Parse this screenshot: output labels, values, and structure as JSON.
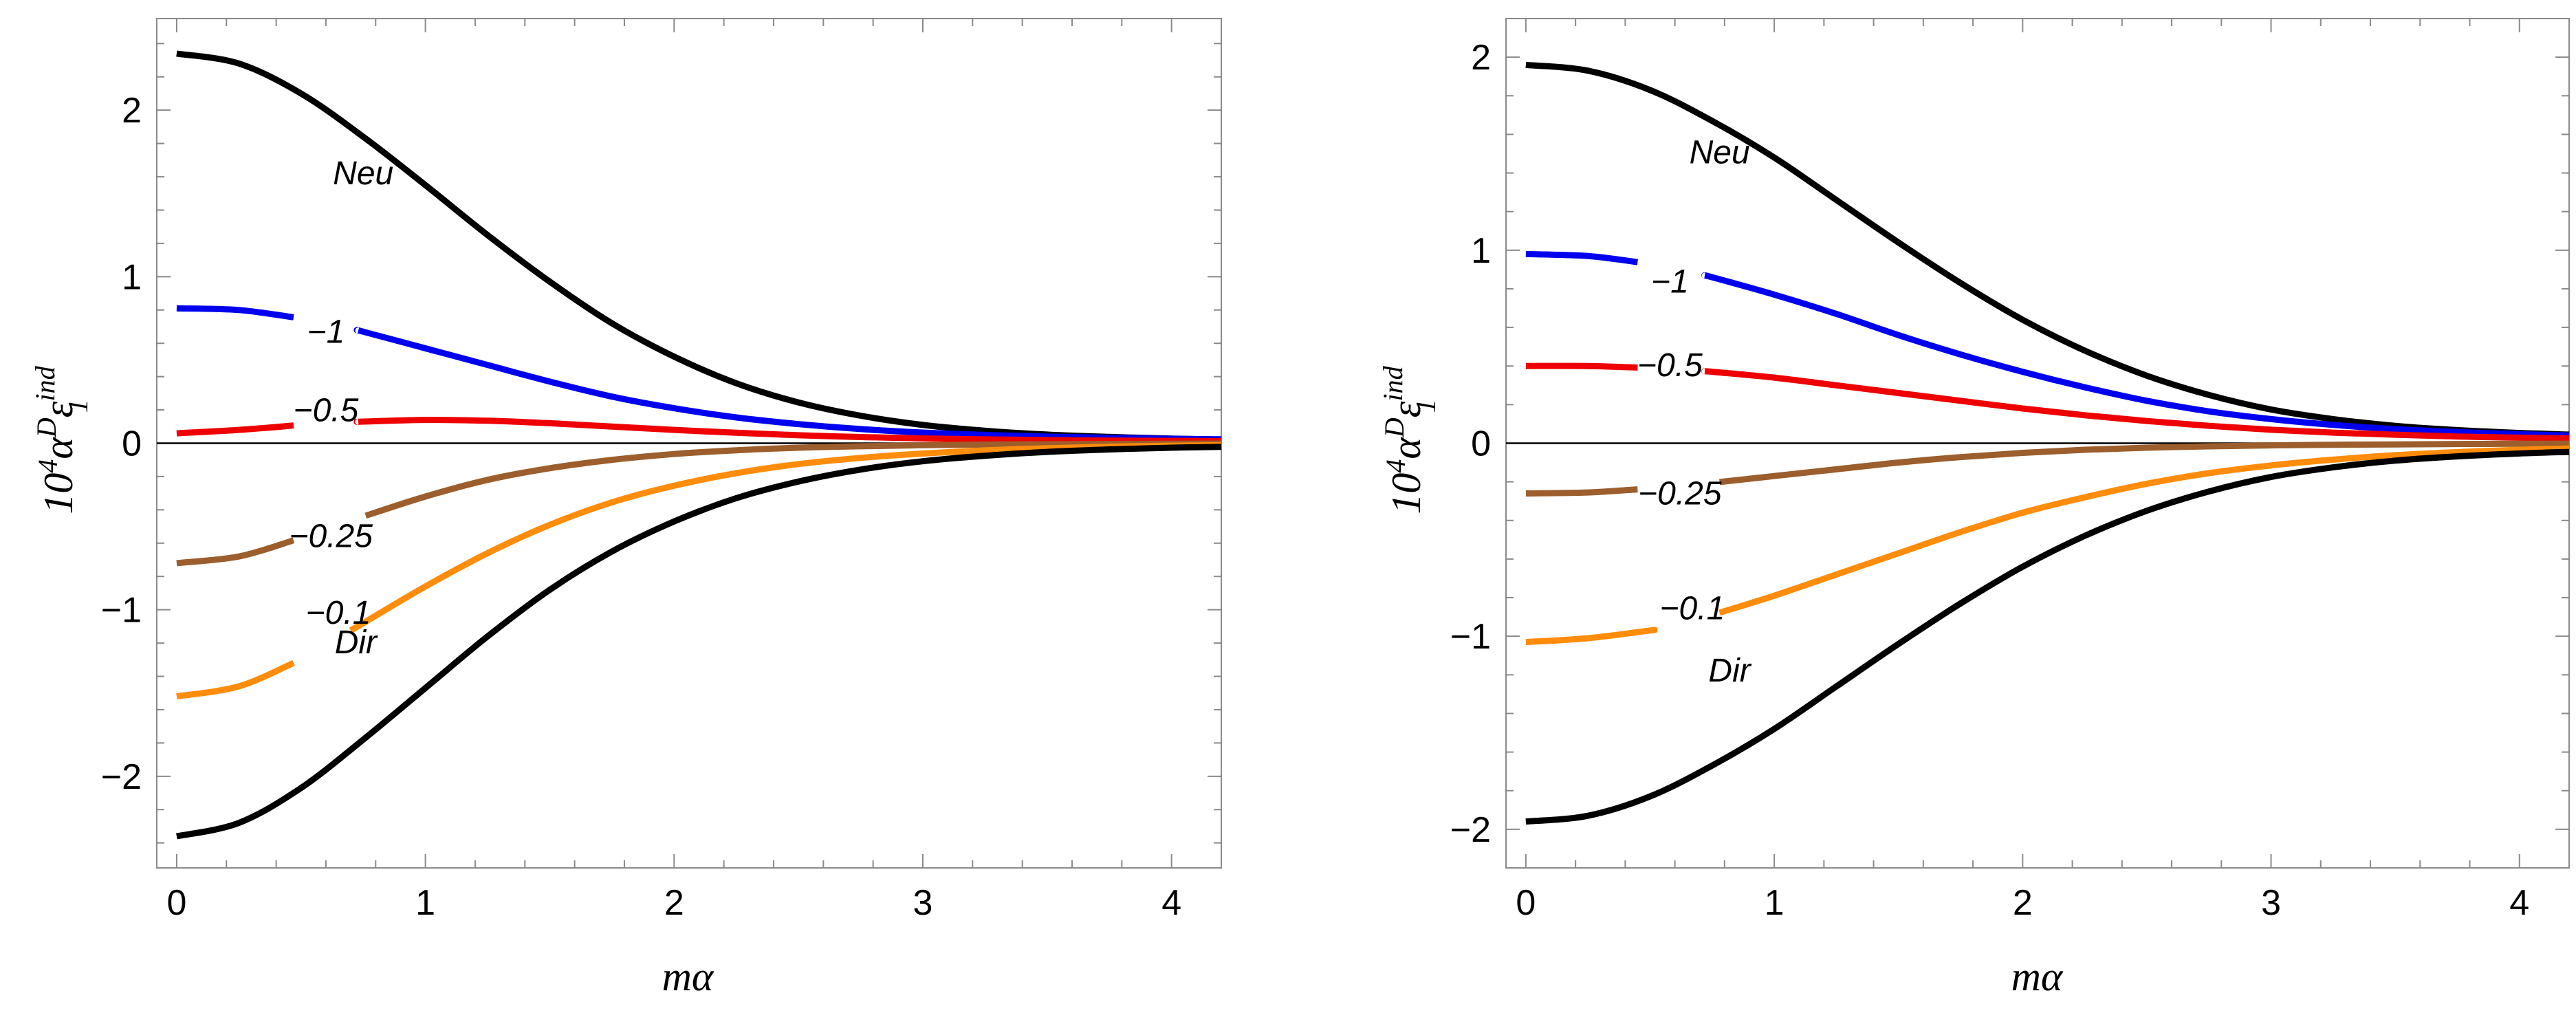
{
  "chart_data": [
    {
      "type": "line",
      "panel": "left",
      "xlabel": "mα",
      "ylabel": {
        "base": "10",
        "exp": "4",
        "a": "α",
        "sup": "D",
        "eps": "ε",
        "sub": "1",
        "ind": "ind"
      },
      "xlim": [
        -0.08,
        4.2
      ],
      "ylim": [
        -2.55,
        2.55
      ],
      "xticks": [
        {
          "v": 0,
          "label": "0"
        },
        {
          "v": 1,
          "label": "1"
        },
        {
          "v": 2,
          "label": "2"
        },
        {
          "v": 3,
          "label": "3"
        },
        {
          "v": 4,
          "label": "4"
        }
      ],
      "yticks": [
        {
          "v": -2,
          "label": "−2"
        },
        {
          "v": -1,
          "label": "−1"
        },
        {
          "v": 0,
          "label": "0"
        },
        {
          "v": 1,
          "label": "1"
        },
        {
          "v": 2,
          "label": "2"
        }
      ],
      "zero_line": true,
      "series": [
        {
          "name": "Neu",
          "color": "#000000",
          "labelX": 0.75,
          "labelDy": -0.22,
          "points": [
            [
              0,
              2.34
            ],
            [
              0.25,
              2.28
            ],
            [
              0.5,
              2.1
            ],
            [
              0.75,
              1.84
            ],
            [
              1,
              1.55
            ],
            [
              1.25,
              1.25
            ],
            [
              1.5,
              0.97
            ],
            [
              1.75,
              0.72
            ],
            [
              2,
              0.52
            ],
            [
              2.25,
              0.36
            ],
            [
              2.5,
              0.245
            ],
            [
              2.75,
              0.165
            ],
            [
              3,
              0.11
            ],
            [
              3.25,
              0.075
            ],
            [
              3.5,
              0.052
            ],
            [
              3.75,
              0.038
            ],
            [
              4,
              0.028
            ],
            [
              4.2,
              0.022
            ]
          ]
        },
        {
          "name": "−1",
          "color": "#0000ee",
          "labelX": 0.6,
          "labelDy": -0.05,
          "gap": [
            0.47,
            0.73
          ],
          "points": [
            [
              0,
              0.81
            ],
            [
              0.25,
              0.8
            ],
            [
              0.5,
              0.75
            ],
            [
              0.75,
              0.67
            ],
            [
              1,
              0.57
            ],
            [
              1.25,
              0.47
            ],
            [
              1.5,
              0.37
            ],
            [
              1.75,
              0.28
            ],
            [
              2,
              0.21
            ],
            [
              2.25,
              0.155
            ],
            [
              2.5,
              0.115
            ],
            [
              2.75,
              0.085
            ],
            [
              3,
              0.064
            ],
            [
              3.25,
              0.05
            ],
            [
              3.5,
              0.04
            ],
            [
              3.75,
              0.033
            ],
            [
              4,
              0.027
            ],
            [
              4.2,
              0.024
            ]
          ]
        },
        {
          "name": "−0.5",
          "color": "#ee0000",
          "labelX": 0.6,
          "labelDy": 0.08,
          "gap": [
            0.47,
            0.73
          ],
          "points": [
            [
              0,
              0.06
            ],
            [
              0.25,
              0.08
            ],
            [
              0.5,
              0.11
            ],
            [
              0.75,
              0.13
            ],
            [
              1,
              0.14
            ],
            [
              1.25,
              0.135
            ],
            [
              1.5,
              0.12
            ],
            [
              1.75,
              0.1
            ],
            [
              2,
              0.08
            ],
            [
              2.25,
              0.063
            ],
            [
              2.5,
              0.048
            ],
            [
              2.75,
              0.037
            ],
            [
              3,
              0.029
            ],
            [
              3.25,
              0.023
            ],
            [
              3.5,
              0.019
            ],
            [
              3.75,
              0.016
            ],
            [
              4,
              0.014
            ],
            [
              4.2,
              0.013
            ]
          ]
        },
        {
          "name": "−0.25",
          "color": "#9c5e2c",
          "labelX": 0.62,
          "labelDy": -0.05,
          "gap": [
            0.47,
            0.76
          ],
          "points": [
            [
              0,
              -0.72
            ],
            [
              0.25,
              -0.68
            ],
            [
              0.5,
              -0.57
            ],
            [
              0.75,
              -0.44
            ],
            [
              1,
              -0.32
            ],
            [
              1.25,
              -0.22
            ],
            [
              1.5,
              -0.15
            ],
            [
              1.75,
              -0.1
            ],
            [
              2,
              -0.065
            ],
            [
              2.25,
              -0.042
            ],
            [
              2.5,
              -0.027
            ],
            [
              2.75,
              -0.018
            ],
            [
              3,
              -0.012
            ],
            [
              3.25,
              -0.008
            ],
            [
              3.5,
              -0.006
            ],
            [
              3.75,
              -0.004
            ],
            [
              4,
              -0.003
            ],
            [
              4.2,
              -0.002
            ]
          ]
        },
        {
          "name": "−0.1",
          "color": "#ff8c0a",
          "labelX": 0.65,
          "labelDy": 0.15,
          "gap": [
            0.47,
            0.7
          ],
          "points": [
            [
              0,
              -1.52
            ],
            [
              0.25,
              -1.46
            ],
            [
              0.5,
              -1.3
            ],
            [
              0.75,
              -1.08
            ],
            [
              1,
              -0.86
            ],
            [
              1.25,
              -0.66
            ],
            [
              1.5,
              -0.49
            ],
            [
              1.75,
              -0.355
            ],
            [
              2,
              -0.255
            ],
            [
              2.25,
              -0.18
            ],
            [
              2.5,
              -0.125
            ],
            [
              2.75,
              -0.088
            ],
            [
              3,
              -0.062
            ],
            [
              3.25,
              -0.043
            ],
            [
              3.5,
              -0.03
            ],
            [
              3.75,
              -0.021
            ],
            [
              4,
              -0.015
            ],
            [
              4.2,
              -0.012
            ]
          ]
        },
        {
          "name": "Dir",
          "color": "#000000",
          "labelX": 0.72,
          "labelDy": 0.62,
          "points": [
            [
              0,
              -2.36
            ],
            [
              0.25,
              -2.28
            ],
            [
              0.5,
              -2.07
            ],
            [
              0.75,
              -1.78
            ],
            [
              1,
              -1.47
            ],
            [
              1.25,
              -1.16
            ],
            [
              1.5,
              -0.88
            ],
            [
              1.75,
              -0.65
            ],
            [
              2,
              -0.47
            ],
            [
              2.25,
              -0.33
            ],
            [
              2.5,
              -0.23
            ],
            [
              2.75,
              -0.158
            ],
            [
              3,
              -0.108
            ],
            [
              3.25,
              -0.075
            ],
            [
              3.5,
              -0.052
            ],
            [
              3.75,
              -0.037
            ],
            [
              4,
              -0.027
            ],
            [
              4.2,
              -0.022
            ]
          ]
        }
      ]
    },
    {
      "type": "line",
      "panel": "right",
      "xlabel": "mα",
      "ylabel": {
        "base": "10",
        "exp": "4",
        "a": "α",
        "sup": "D",
        "eps": "ε",
        "sub": "1",
        "ind": "ind"
      },
      "xlim": [
        -0.08,
        4.2
      ],
      "ylim": [
        -2.2,
        2.2
      ],
      "xticks": [
        {
          "v": 0,
          "label": "0"
        },
        {
          "v": 1,
          "label": "1"
        },
        {
          "v": 2,
          "label": "2"
        },
        {
          "v": 3,
          "label": "3"
        },
        {
          "v": 4,
          "label": "4"
        }
      ],
      "yticks": [
        {
          "v": -2,
          "label": "−2"
        },
        {
          "v": -1,
          "label": "−1"
        },
        {
          "v": 0,
          "label": "0"
        },
        {
          "v": 1,
          "label": "1"
        },
        {
          "v": 2,
          "label": "2"
        }
      ],
      "zero_line": true,
      "series": [
        {
          "name": "Neu",
          "color": "#000000",
          "labelX": 0.78,
          "labelDy": -0.14,
          "points": [
            [
              0,
              1.96
            ],
            [
              0.25,
              1.93
            ],
            [
              0.5,
              1.83
            ],
            [
              0.75,
              1.67
            ],
            [
              1,
              1.48
            ],
            [
              1.25,
              1.26
            ],
            [
              1.5,
              1.04
            ],
            [
              1.75,
              0.83
            ],
            [
              2,
              0.64
            ],
            [
              2.25,
              0.48
            ],
            [
              2.5,
              0.35
            ],
            [
              2.75,
              0.25
            ],
            [
              3,
              0.175
            ],
            [
              3.25,
              0.125
            ],
            [
              3.5,
              0.09
            ],
            [
              3.75,
              0.068
            ],
            [
              4,
              0.053
            ],
            [
              4.2,
              0.045
            ]
          ]
        },
        {
          "name": "−1",
          "color": "#0000ee",
          "labelX": 0.58,
          "labelDy": -0.07,
          "gap": [
            0.45,
            0.72
          ],
          "points": [
            [
              0,
              0.98
            ],
            [
              0.25,
              0.97
            ],
            [
              0.5,
              0.93
            ],
            [
              0.75,
              0.86
            ],
            [
              1,
              0.77
            ],
            [
              1.25,
              0.67
            ],
            [
              1.5,
              0.56
            ],
            [
              1.75,
              0.46
            ],
            [
              2,
              0.37
            ],
            [
              2.25,
              0.29
            ],
            [
              2.5,
              0.22
            ],
            [
              2.75,
              0.165
            ],
            [
              3,
              0.125
            ],
            [
              3.25,
              0.095
            ],
            [
              3.5,
              0.073
            ],
            [
              3.75,
              0.058
            ],
            [
              4,
              0.047
            ],
            [
              4.2,
              0.04
            ]
          ]
        },
        {
          "name": "−0.5",
          "color": "#ee0000",
          "labelX": 0.58,
          "labelDy": 0.02,
          "gap": [
            0.45,
            0.72
          ],
          "points": [
            [
              0,
              0.4
            ],
            [
              0.25,
              0.4
            ],
            [
              0.5,
              0.39
            ],
            [
              0.75,
              0.37
            ],
            [
              1,
              0.34
            ],
            [
              1.25,
              0.3
            ],
            [
              1.5,
              0.26
            ],
            [
              1.75,
              0.22
            ],
            [
              2,
              0.18
            ],
            [
              2.25,
              0.145
            ],
            [
              2.5,
              0.115
            ],
            [
              2.75,
              0.09
            ],
            [
              3,
              0.07
            ],
            [
              3.25,
              0.055
            ],
            [
              3.5,
              0.044
            ],
            [
              3.75,
              0.035
            ],
            [
              4,
              0.029
            ],
            [
              4.2,
              0.025
            ]
          ]
        },
        {
          "name": "−0.25",
          "color": "#9c5e2c",
          "labelX": 0.62,
          "labelDy": -0.04,
          "gap": [
            0.45,
            0.78
          ],
          "points": [
            [
              0,
              -0.26
            ],
            [
              0.25,
              -0.255
            ],
            [
              0.5,
              -0.235
            ],
            [
              0.75,
              -0.205
            ],
            [
              1,
              -0.17
            ],
            [
              1.25,
              -0.135
            ],
            [
              1.5,
              -0.1
            ],
            [
              1.75,
              -0.072
            ],
            [
              2,
              -0.05
            ],
            [
              2.25,
              -0.034
            ],
            [
              2.5,
              -0.023
            ],
            [
              2.75,
              -0.016
            ],
            [
              3,
              -0.011
            ],
            [
              3.25,
              -0.008
            ],
            [
              3.5,
              -0.006
            ],
            [
              3.75,
              -0.004
            ],
            [
              4,
              -0.003
            ],
            [
              4.2,
              -0.002
            ]
          ]
        },
        {
          "name": "−0.1",
          "color": "#ff8c0a",
          "labelX": 0.67,
          "labelDy": 0.06,
          "gap": [
            0.5,
            0.78
          ],
          "points": [
            [
              0,
              -1.03
            ],
            [
              0.25,
              -1.01
            ],
            [
              0.5,
              -0.97
            ],
            [
              0.75,
              -0.89
            ],
            [
              1,
              -0.79
            ],
            [
              1.25,
              -0.68
            ],
            [
              1.5,
              -0.57
            ],
            [
              1.75,
              -0.46
            ],
            [
              2,
              -0.36
            ],
            [
              2.25,
              -0.28
            ],
            [
              2.5,
              -0.21
            ],
            [
              2.75,
              -0.155
            ],
            [
              3,
              -0.115
            ],
            [
              3.25,
              -0.085
            ],
            [
              3.5,
              -0.062
            ],
            [
              3.75,
              -0.046
            ],
            [
              4,
              -0.034
            ],
            [
              4.2,
              -0.027
            ]
          ]
        },
        {
          "name": "Dir",
          "color": "#000000",
          "labelX": 0.82,
          "labelDy": 0.44,
          "points": [
            [
              0,
              -1.96
            ],
            [
              0.25,
              -1.93
            ],
            [
              0.5,
              -1.83
            ],
            [
              0.75,
              -1.67
            ],
            [
              1,
              -1.48
            ],
            [
              1.25,
              -1.26
            ],
            [
              1.5,
              -1.04
            ],
            [
              1.75,
              -0.83
            ],
            [
              2,
              -0.64
            ],
            [
              2.25,
              -0.48
            ],
            [
              2.5,
              -0.35
            ],
            [
              2.75,
              -0.25
            ],
            [
              3,
              -0.175
            ],
            [
              3.25,
              -0.125
            ],
            [
              3.5,
              -0.09
            ],
            [
              3.75,
              -0.068
            ],
            [
              4,
              -0.053
            ],
            [
              4.2,
              -0.045
            ]
          ]
        }
      ]
    }
  ]
}
